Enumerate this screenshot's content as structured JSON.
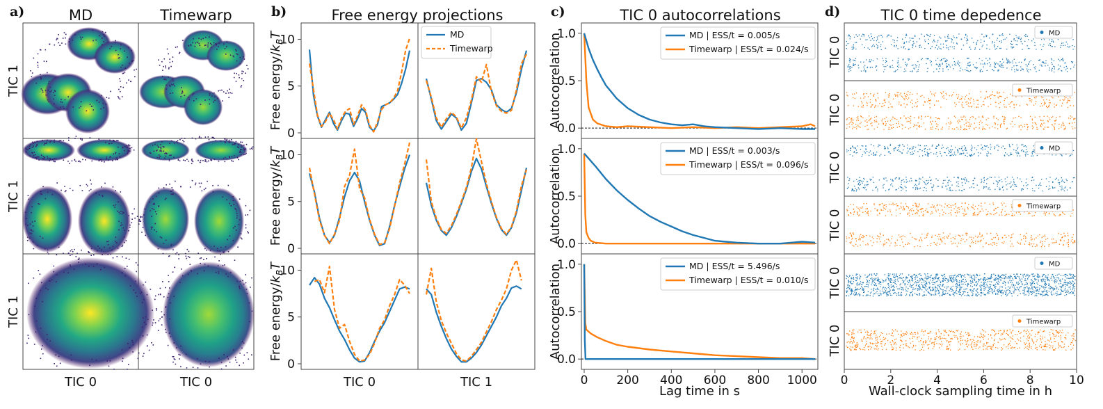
{
  "panel_labels": [
    "a)",
    "b)",
    "c)",
    "d)"
  ],
  "colors": {
    "md": "#1f77b4",
    "timewarp": "#ff7f0e"
  },
  "panel_a": {
    "col_titles": [
      "MD",
      "Timewarp"
    ],
    "ylabel": "TIC 1",
    "xlabel": "TIC 0"
  },
  "chart_data": [
    {
      "type": "heatmap",
      "panel": "a",
      "title": "",
      "columns": [
        "MD",
        "Timewarp"
      ],
      "rows": 3,
      "xlabel": "TIC 0",
      "ylabel": "TIC 1",
      "colormap": "viridis",
      "grid": false
    },
    {
      "type": "line",
      "panel": "b",
      "title": "Free energy projections",
      "ylabel": "Free energy/k_BT",
      "xlabels": [
        "TIC 0",
        "TIC 1"
      ],
      "ylim": [
        0,
        11
      ],
      "yticks": [
        "0",
        "5",
        "10"
      ],
      "legend": {
        "placement": "top-right",
        "entries": [
          "MD",
          "Timewarp"
        ]
      },
      "rows": [
        {
          "tic0": {
            "x": [
              0,
              0.04,
              0.08,
              0.12,
              0.16,
              0.2,
              0.24,
              0.28,
              0.32,
              0.36,
              0.4,
              0.44,
              0.48,
              0.52,
              0.56,
              0.6,
              0.64,
              0.68,
              0.72,
              0.76,
              0.8,
              0.84,
              0.88,
              0.92,
              0.96,
              1.0
            ],
            "MD": [
              8.9,
              4.0,
              1.8,
              0.6,
              1.4,
              2.2,
              1.0,
              0.3,
              1.3,
              2.1,
              2.0,
              0.7,
              1.5,
              2.6,
              2.2,
              0.6,
              0.2,
              0.9,
              2.8,
              3.0,
              3.2,
              3.6,
              4.1,
              5.3,
              6.8,
              8.8
            ],
            "Timewarp": [
              7.4,
              4.6,
              1.9,
              0.7,
              1.2,
              2.1,
              1.4,
              0.4,
              1.6,
              2.3,
              2.6,
              0.9,
              1.8,
              3.0,
              2.4,
              0.8,
              0.1,
              1.2,
              2.5,
              3.0,
              3.2,
              3.7,
              4.5,
              6.5,
              8.8,
              10.1
            ]
          },
          "tic1": {
            "x": [
              0,
              0.05,
              0.1,
              0.15,
              0.2,
              0.25,
              0.3,
              0.35,
              0.4,
              0.45,
              0.5,
              0.55,
              0.6,
              0.65,
              0.7,
              0.75,
              0.8,
              0.85,
              0.9,
              0.95,
              1.0
            ],
            "MD": [
              5.8,
              3.6,
              1.3,
              0.4,
              1.2,
              2.0,
              1.6,
              0.3,
              1.0,
              3.2,
              5.6,
              5.8,
              5.4,
              4.6,
              3.0,
              2.5,
              2.2,
              2.6,
              4.3,
              6.8,
              8.8
            ],
            "Timewarp": [
              5.6,
              3.8,
              1.6,
              0.6,
              1.5,
              2.2,
              1.7,
              0.5,
              1.6,
              3.5,
              6.0,
              5.4,
              7.3,
              4.4,
              2.9,
              2.3,
              2.1,
              2.4,
              4.6,
              7.4,
              8.4
            ]
          }
        },
        {
          "tic0": {
            "x": [
              0,
              0.05,
              0.1,
              0.15,
              0.2,
              0.25,
              0.3,
              0.35,
              0.4,
              0.45,
              0.5,
              0.55,
              0.6,
              0.65,
              0.7,
              0.75,
              0.8,
              0.85,
              0.9,
              0.95,
              1.0
            ],
            "MD": [
              8.0,
              6.0,
              3.2,
              1.4,
              0.6,
              1.4,
              3.3,
              5.5,
              7.2,
              8.1,
              7.2,
              5.0,
              3.0,
              1.4,
              0.3,
              0.5,
              2.3,
              4.6,
              6.6,
              8.5,
              10.0
            ],
            "Timewarp": [
              8.6,
              5.8,
              3.0,
              1.4,
              0.5,
              1.5,
              3.0,
              6.6,
              7.8,
              10.6,
              6.4,
              5.4,
              3.1,
              1.5,
              0.4,
              0.6,
              2.1,
              4.5,
              7.0,
              9.0,
              11.3
            ]
          },
          "tic1": {
            "x": [
              0,
              0.05,
              0.1,
              0.15,
              0.2,
              0.25,
              0.3,
              0.35,
              0.4,
              0.45,
              0.5,
              0.55,
              0.6,
              0.65,
              0.7,
              0.75,
              0.8,
              0.85,
              0.9,
              0.95,
              1.0
            ],
            "MD": [
              7.0,
              4.6,
              3.0,
              1.9,
              1.4,
              2.2,
              3.4,
              4.8,
              6.3,
              8.2,
              9.6,
              8.5,
              6.6,
              4.8,
              3.2,
              2.0,
              1.4,
              2.2,
              3.8,
              6.2,
              8.6
            ],
            "Timewarp": [
              9.5,
              5.0,
              3.2,
              2.0,
              1.6,
              2.4,
              3.6,
              5.0,
              6.5,
              8.6,
              11.7,
              9.3,
              6.9,
              5.0,
              3.3,
              2.1,
              1.5,
              2.3,
              4.0,
              6.7,
              8.4
            ]
          }
        },
        {
          "tic0": {
            "x": [
              0,
              0.05,
              0.1,
              0.15,
              0.2,
              0.25,
              0.3,
              0.35,
              0.4,
              0.45,
              0.5,
              0.55,
              0.6,
              0.65,
              0.7,
              0.75,
              0.8,
              0.85,
              0.9,
              0.95,
              1.0
            ],
            "MD": [
              8.4,
              9.2,
              8.5,
              7.0,
              6.0,
              4.7,
              3.5,
              2.6,
              1.5,
              0.6,
              0.2,
              0.3,
              1.2,
              2.4,
              3.5,
              4.4,
              5.6,
              6.8,
              8.0,
              8.2,
              8.0
            ],
            "Timewarp": [
              null,
              8.8,
              9.0,
              7.6,
              10.4,
              5.8,
              3.8,
              4.2,
              2.4,
              1.0,
              0.3,
              0.4,
              1.0,
              2.2,
              3.8,
              4.7,
              6.2,
              7.4,
              9.0,
              8.4,
              7.5
            ]
          },
          "tic1": {
            "x": [
              0,
              0.05,
              0.1,
              0.15,
              0.2,
              0.25,
              0.3,
              0.35,
              0.4,
              0.45,
              0.5,
              0.55,
              0.6,
              0.65,
              0.7,
              0.75,
              0.8,
              0.85,
              0.9,
              0.95,
              1.0
            ],
            "MD": [
              8.0,
              7.4,
              5.5,
              4.0,
              2.7,
              1.6,
              0.8,
              0.2,
              0.2,
              0.6,
              1.2,
              2.0,
              3.0,
              4.0,
              5.0,
              6.2,
              7.0,
              8.1,
              8.3,
              8.0,
              null
            ],
            "Timewarp": [
              7.4,
              10.2,
              6.6,
              4.6,
              3.3,
              2.2,
              1.1,
              0.4,
              0.3,
              0.8,
              1.5,
              2.3,
              3.4,
              4.5,
              5.8,
              6.8,
              8.0,
              10.0,
              11.1,
              8.9,
              null
            ]
          }
        }
      ]
    },
    {
      "type": "line",
      "panel": "c",
      "title": "TIC 0 autocorrelations",
      "xlabel": "Lag time in s",
      "ylabel": "Autocorrelation",
      "xlim": [
        0,
        1060
      ],
      "ylim": [
        -0.05,
        1.05
      ],
      "xticks": [
        "0",
        "200",
        "400",
        "600",
        "800",
        "1000"
      ],
      "yticks": [
        "0.0",
        "0.5",
        "1.0"
      ],
      "reference_line": 0.0,
      "rows": [
        {
          "legend": [
            "MD | ESS/t = 0.005/s",
            "Timewarp | ESS/t = 0.024/s"
          ],
          "MD": {
            "x": [
              0,
              20,
              40,
              60,
              80,
              100,
              150,
              200,
              250,
              300,
              350,
              400,
              450,
              500,
              550,
              600,
              700,
              800,
              900,
              1000,
              1060
            ],
            "y": [
              1.0,
              0.84,
              0.72,
              0.62,
              0.53,
              0.45,
              0.31,
              0.21,
              0.14,
              0.09,
              0.06,
              0.04,
              0.03,
              0.04,
              0.02,
              0.01,
              0.0,
              -0.01,
              0.0,
              -0.01,
              -0.01
            ]
          },
          "Timewarp": {
            "x": [
              0,
              10,
              20,
              40,
              60,
              100,
              150,
              200,
              300,
              400,
              500,
              600,
              700,
              800,
              900,
              1000,
              1040,
              1060
            ],
            "y": [
              1.0,
              0.5,
              0.22,
              0.09,
              0.05,
              0.02,
              0.01,
              0.02,
              0.01,
              0.0,
              0.01,
              0.0,
              0.01,
              0.0,
              0.01,
              0.02,
              0.04,
              0.02
            ]
          }
        },
        {
          "legend": [
            "MD | ESS/t = 0.003/s",
            "Timewarp | ESS/t = 0.096/s"
          ],
          "MD": {
            "x": [
              0,
              50,
              100,
              150,
              200,
              250,
              300,
              350,
              400,
              450,
              500,
              550,
              600,
              650,
              700,
              800,
              900,
              1000,
              1060
            ],
            "y": [
              0.95,
              0.82,
              0.68,
              0.56,
              0.46,
              0.37,
              0.29,
              0.23,
              0.18,
              0.13,
              0.09,
              0.06,
              0.03,
              0.02,
              0.01,
              0.0,
              0.0,
              0.02,
              0.01
            ]
          },
          "Timewarp": {
            "x": [
              0,
              5,
              10,
              20,
              30,
              50,
              100,
              200,
              400,
              600,
              800,
              1000,
              1060
            ],
            "y": [
              0.95,
              0.3,
              0.12,
              0.06,
              0.03,
              0.01,
              0.0,
              0.0,
              0.0,
              0.0,
              0.0,
              0.0,
              0.0
            ]
          }
        },
        {
          "legend": [
            "MD | ESS/t = 5.496/s",
            "Timewarp | ESS/t = 0.010/s"
          ],
          "MD": {
            "x": [
              0,
              3,
              6,
              100,
              300,
              500,
              700,
              900,
              1060
            ],
            "y": [
              1.0,
              0.2,
              0.0,
              0.0,
              0.0,
              0.0,
              0.0,
              0.0,
              0.0
            ]
          },
          "Timewarp": {
            "x": [
              0,
              5,
              10,
              30,
              60,
              100,
              150,
              200,
              300,
              400,
              500,
              600,
              700,
              800,
              900,
              1000,
              1060
            ],
            "y": [
              1.0,
              0.38,
              0.31,
              0.27,
              0.23,
              0.19,
              0.15,
              0.13,
              0.1,
              0.08,
              0.06,
              0.04,
              0.03,
              0.02,
              0.01,
              0.01,
              0.0
            ]
          }
        }
      ]
    },
    {
      "type": "scatter",
      "panel": "d",
      "title": "TIC 0 time depedence",
      "xlabel": "Wall-clock sampling time in h",
      "ylabel": "TIC 0",
      "xlim": [
        0,
        10
      ],
      "xticks": [
        "0",
        "2",
        "4",
        "6",
        "8",
        "10"
      ],
      "series_order": [
        "MD",
        "Timewarp",
        "MD",
        "Timewarp",
        "MD",
        "Timewarp"
      ],
      "legend_placement": "top-right"
    }
  ]
}
